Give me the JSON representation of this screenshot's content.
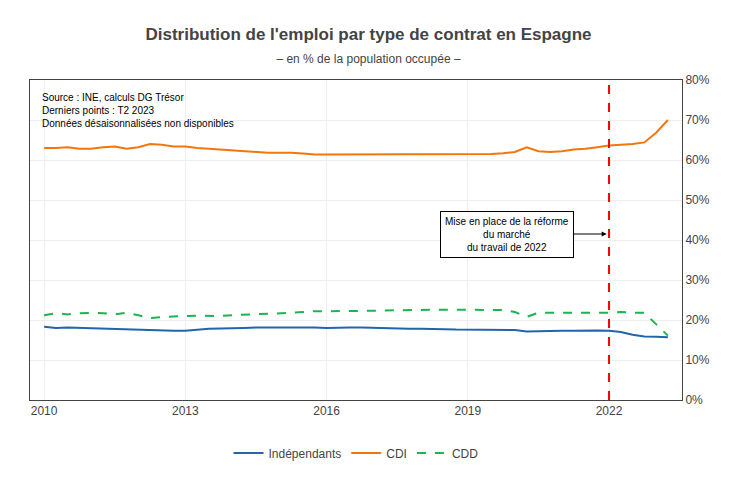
{
  "chart_data": {
    "type": "line",
    "title": "Distribution de l'emploi par type de contrat en Espagne",
    "subtitle": "– en % de la population occupée –",
    "annotations": [
      {
        "text": "Source : INE, calculs DG Trésor\nDerniers points : T2 2023\nDonnées désaisonnalisées non disponibles"
      },
      {
        "text": "Mise en place de la réforme\ndu marché\ndu travail de 2022",
        "x": 2021.95,
        "y": 0.415
      }
    ],
    "vlines": [
      {
        "x": 2022.0,
        "color": "red",
        "line_style": "dashed"
      }
    ],
    "x": [
      2010.0,
      2010.25,
      2010.5,
      2010.75,
      2011.0,
      2011.25,
      2011.5,
      2011.75,
      2012.0,
      2012.25,
      2012.5,
      2012.75,
      2013.0,
      2013.25,
      2013.5,
      2013.75,
      2014.0,
      2014.25,
      2014.5,
      2014.75,
      2015.0,
      2015.25,
      2015.5,
      2015.75,
      2016.0,
      2016.25,
      2016.5,
      2016.75,
      2017.0,
      2017.25,
      2017.5,
      2017.75,
      2018.0,
      2018.25,
      2018.5,
      2018.75,
      2019.0,
      2019.25,
      2019.5,
      2019.75,
      2020.0,
      2020.25,
      2020.5,
      2020.75,
      2021.0,
      2021.25,
      2021.5,
      2021.75,
      2022.0,
      2022.25,
      2022.5,
      2022.75,
      2023.0,
      2023.25
    ],
    "series": [
      {
        "name": "Indépendants",
        "color": "#2166ac",
        "line_style": "solid",
        "values": [
          0.183,
          0.18,
          0.181,
          0.18,
          0.179,
          0.178,
          0.178,
          0.176,
          0.175,
          0.174,
          0.174,
          0.173,
          0.173,
          0.176,
          0.178,
          0.179,
          0.179,
          0.18,
          0.181,
          0.181,
          0.181,
          0.182,
          0.182,
          0.181,
          0.18,
          0.181,
          0.181,
          0.181,
          0.18,
          0.179,
          0.179,
          0.178,
          0.178,
          0.178,
          0.177,
          0.176,
          0.176,
          0.176,
          0.175,
          0.175,
          0.175,
          0.171,
          0.172,
          0.173,
          0.173,
          0.173,
          0.174,
          0.174,
          0.173,
          0.17,
          0.163,
          0.159,
          0.158,
          0.157
        ]
      },
      {
        "name": "CDI",
        "color": "#f4760b",
        "line_style": "solid",
        "values": [
          0.63,
          0.63,
          0.632,
          0.628,
          0.628,
          0.632,
          0.634,
          0.628,
          0.632,
          0.64,
          0.638,
          0.634,
          0.634,
          0.63,
          0.628,
          0.626,
          0.624,
          0.622,
          0.62,
          0.618,
          0.618,
          0.618,
          0.616,
          0.614,
          0.614,
          0.614,
          0.614,
          0.614,
          0.614,
          0.614,
          0.614,
          0.614,
          0.614,
          0.614,
          0.614,
          0.614,
          0.614,
          0.615,
          0.615,
          0.617,
          0.62,
          0.632,
          0.622,
          0.62,
          0.622,
          0.626,
          0.628,
          0.632,
          0.636,
          0.638,
          0.64,
          0.644,
          0.668,
          0.7
        ]
      },
      {
        "name": "CDD",
        "color": "#1db34f",
        "line_style": "dashed",
        "values": [
          0.212,
          0.217,
          0.214,
          0.217,
          0.218,
          0.217,
          0.214,
          0.218,
          0.212,
          0.205,
          0.207,
          0.209,
          0.21,
          0.211,
          0.211,
          0.21,
          0.212,
          0.213,
          0.214,
          0.215,
          0.216,
          0.218,
          0.22,
          0.222,
          0.222,
          0.222,
          0.222,
          0.222,
          0.223,
          0.224,
          0.224,
          0.225,
          0.225,
          0.226,
          0.226,
          0.226,
          0.226,
          0.226,
          0.226,
          0.225,
          0.22,
          0.208,
          0.218,
          0.218,
          0.218,
          0.218,
          0.218,
          0.218,
          0.218,
          0.22,
          0.218,
          0.218,
          0.19,
          0.161
        ]
      }
    ],
    "xlim": [
      2009.7,
      2023.55
    ],
    "xticks": [
      2010,
      2013,
      2016,
      2019,
      2022
    ],
    "ylim": [
      0.0,
      0.8
    ],
    "yticks": [
      {
        "value": 0.0,
        "label": "0%"
      },
      {
        "value": 0.1,
        "label": "10%"
      },
      {
        "value": 0.2,
        "label": "20%"
      },
      {
        "value": 0.3,
        "label": "30%"
      },
      {
        "value": 0.4,
        "label": "40%"
      },
      {
        "value": 0.5,
        "label": "50%"
      },
      {
        "value": 0.6,
        "label": "60%"
      },
      {
        "value": 0.7,
        "label": "70%"
      },
      {
        "value": 0.8,
        "label": "80%"
      }
    ],
    "grid": true,
    "legend": "bottom"
  }
}
